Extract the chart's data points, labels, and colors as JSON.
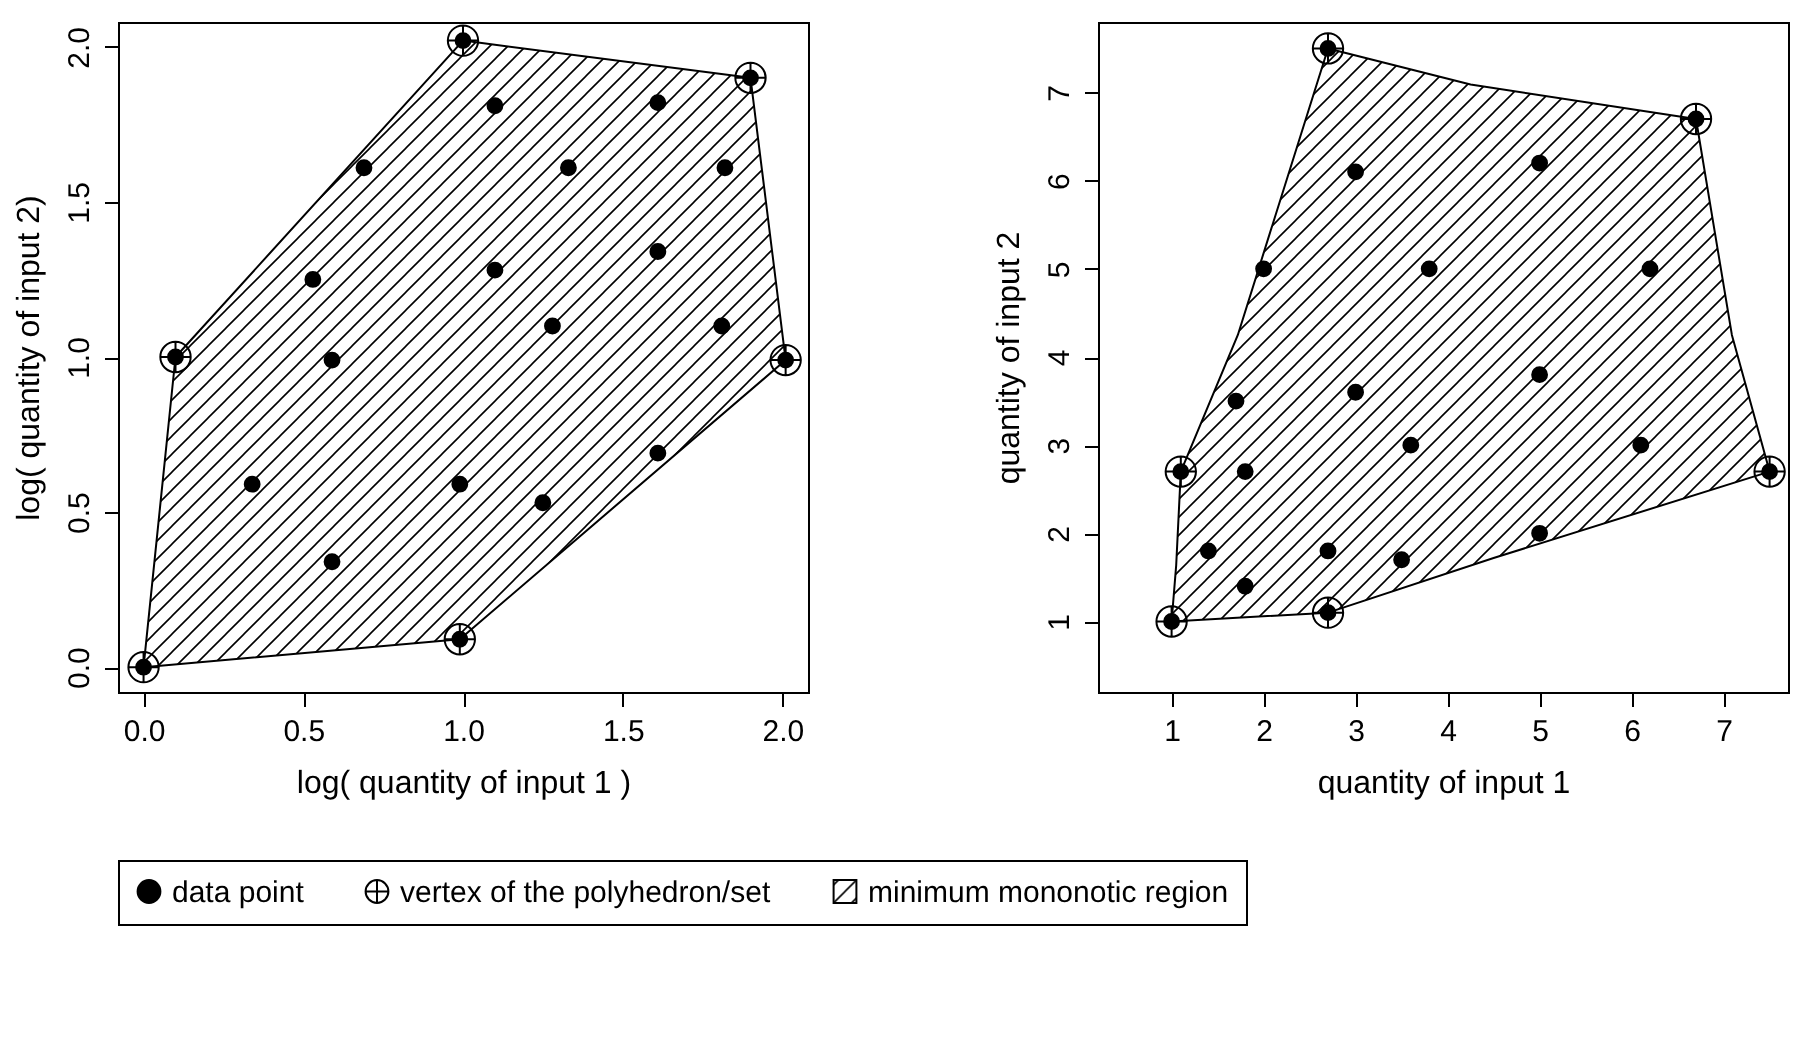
{
  "chart_data": [
    {
      "type": "scatter",
      "xlabel": "log( quantity of input 1 )",
      "ylabel": "log( quantity of input 2)",
      "legend": "bottom",
      "grid": false,
      "xlim": [
        -0.08,
        2.08
      ],
      "ylim": [
        -0.08,
        2.08
      ],
      "xticks": [
        {
          "value": 0,
          "label": "0.0"
        },
        {
          "value": 0.5,
          "label": "0.5"
        },
        {
          "value": 1,
          "label": "1.0"
        },
        {
          "value": 1.5,
          "label": "1.5"
        },
        {
          "value": 2,
          "label": "2.0"
        }
      ],
      "yticks": [
        {
          "value": 0,
          "label": "0.0"
        },
        {
          "value": 0.5,
          "label": "0.5"
        },
        {
          "value": 1,
          "label": "1.0"
        },
        {
          "value": 1.5,
          "label": "1.5"
        },
        {
          "value": 2,
          "label": "2.0"
        }
      ],
      "series": [
        {
          "name": "data point",
          "marker": "circle",
          "color": "#000000",
          "x": [
            0,
            0.1,
            1.0,
            1.9,
            2.01,
            0.99,
            0.69,
            1.1,
            1.61,
            1.33,
            1.82,
            0.53,
            1.1,
            1.61,
            0.59,
            1.28,
            1.81,
            0.34,
            0.99,
            1.25,
            1.61,
            0.59
          ],
          "values": [
            0,
            1.0,
            2.02,
            1.9,
            0.99,
            0.09,
            1.61,
            1.81,
            1.82,
            1.61,
            1.61,
            1.25,
            1.28,
            1.34,
            0.99,
            1.1,
            1.1,
            0.59,
            0.59,
            0.53,
            0.69,
            0.34
          ]
        },
        {
          "name": "vertex of the polyhedron/set",
          "marker": "cross",
          "color": "#000000",
          "x": [
            0,
            0.1,
            1.0,
            1.9,
            2.01,
            0.99
          ],
          "values": [
            0,
            1.0,
            2.02,
            1.9,
            0.99,
            0.09
          ]
        },
        {
          "name": "minimum mononotic region",
          "type": "area",
          "color": "#000000",
          "x": [
            0,
            0.1,
            1.0,
            1.9,
            2.01,
            0.99,
            0
          ],
          "values": [
            0,
            1.0,
            2.02,
            1.9,
            0.99,
            0.09,
            0
          ]
        }
      ]
    },
    {
      "type": "scatter",
      "xlabel": "quantity of input 1",
      "ylabel": "quantity of input 2",
      "legend": "bottom",
      "grid": false,
      "xlim": [
        0.2,
        7.7
      ],
      "ylim": [
        0.2,
        7.8
      ],
      "xticks": [
        1,
        2,
        3,
        4,
        5,
        6,
        7
      ],
      "yticks": [
        1,
        2,
        3,
        4,
        5,
        6,
        7
      ],
      "series": [
        {
          "name": "data point",
          "marker": "circle",
          "color": "#000000",
          "x": [
            1.0,
            1.1,
            2.7,
            6.7,
            7.5,
            2.7,
            3.0,
            5.0,
            2.0,
            3.8,
            6.2,
            1.7,
            3.0,
            5.0,
            3.6,
            6.1,
            1.8,
            1.4,
            2.7,
            3.5,
            1.8,
            5.0
          ],
          "values": [
            1.0,
            2.7,
            7.5,
            6.7,
            2.7,
            1.1,
            6.1,
            6.2,
            5.0,
            5.0,
            5.0,
            3.5,
            3.6,
            3.8,
            3.0,
            3.0,
            2.7,
            1.8,
            1.8,
            1.7,
            1.4,
            2.0
          ]
        },
        {
          "name": "vertex of the polyhedron/set",
          "marker": "cross",
          "color": "#000000",
          "x": [
            1.0,
            1.1,
            2.7,
            6.7,
            7.5,
            2.7
          ],
          "values": [
            1.0,
            2.7,
            7.5,
            6.7,
            2.7,
            1.1
          ]
        },
        {
          "name": "minimum mononotic region",
          "type": "area",
          "color": "#000000",
          "x": [
            1.0,
            1.05,
            1.1,
            1.72,
            2.7,
            4.25,
            6.7,
            7.09,
            7.5,
            4.5,
            2.7,
            1.0
          ],
          "values": [
            1.0,
            1.64,
            2.7,
            4.25,
            7.5,
            7.09,
            6.7,
            4.25,
            2.7,
            1.72,
            1.1,
            1.0
          ]
        }
      ]
    }
  ]
}
